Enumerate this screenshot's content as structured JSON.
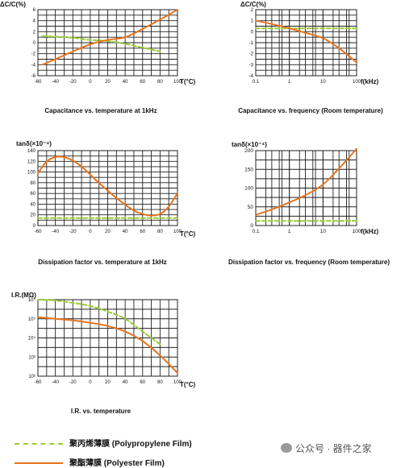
{
  "colors": {
    "polypropylene": "#9ACD32",
    "polyester": "#E8741C",
    "grid": "#222222"
  },
  "chart_data": [
    {
      "id": "cap-temp",
      "type": "line",
      "title": "Capacitance vs. temperature at 1kHz",
      "ylabel": "ΔC/C(%)",
      "xlabel": "T(°C)",
      "xscale": "linear",
      "x_ticks": [
        "-60",
        "-40",
        "-20",
        "0",
        "20",
        "40",
        "60",
        "80",
        "100"
      ],
      "y_ticks": [
        "6",
        "4",
        "2",
        "0",
        "-2",
        "-4",
        "-6"
      ],
      "xlim": [
        -60,
        100
      ],
      "ylim": [
        -6,
        6
      ],
      "grid": true,
      "series": [
        {
          "name": "聚丙烯薄膜 (Polypropylene Film)",
          "style": "dashed",
          "x": [
            -55,
            -40,
            -20,
            0,
            20,
            40,
            60,
            80
          ],
          "y": [
            1.2,
            1.1,
            0.9,
            0.5,
            0.3,
            -0.2,
            -0.9,
            -1.6
          ]
        },
        {
          "name": "聚酯薄膜 (Polyester Film)",
          "style": "solid",
          "x": [
            -55,
            -40,
            -20,
            0,
            20,
            40,
            60,
            80,
            100
          ],
          "y": [
            -4.0,
            -3.0,
            -1.6,
            -0.3,
            0.5,
            1.0,
            2.5,
            4.2,
            6.0
          ]
        }
      ]
    },
    {
      "id": "cap-freq",
      "type": "line",
      "title": "Capacitance vs. frequency (Room temperature)",
      "ylabel": "ΔC/C(%)",
      "xlabel": "f(kHz)",
      "xscale": "log",
      "x_ticks": [
        "0.1",
        "1",
        "10",
        "100"
      ],
      "y_ticks": [
        "2",
        "1",
        "0",
        "-1",
        "-2",
        "-3",
        "-4"
      ],
      "xlim": [
        0.1,
        100
      ],
      "ylim": [
        -4,
        2
      ],
      "grid": true,
      "series": [
        {
          "name": "聚丙烯薄膜 (Polypropylene Film)",
          "style": "dashed",
          "x": [
            0.1,
            1,
            10,
            100
          ],
          "y": [
            0.3,
            0.3,
            0.3,
            0.3
          ]
        },
        {
          "name": "聚酯薄膜 (Polyester Film)",
          "style": "solid",
          "x": [
            0.1,
            0.3,
            1,
            3,
            10,
            30,
            100
          ],
          "y": [
            1.0,
            0.7,
            0.3,
            -0.1,
            -0.6,
            -1.5,
            -2.8
          ]
        }
      ]
    },
    {
      "id": "df-temp",
      "type": "line",
      "title": "Dissipation factor vs. temperature at 1kHz",
      "ylabel": "tanδ(×10⁻⁴)",
      "xlabel": "T(°C)",
      "xscale": "linear",
      "x_ticks": [
        "-60",
        "-40",
        "-20",
        "0",
        "20",
        "40",
        "60",
        "80",
        "100"
      ],
      "y_ticks": [
        "140",
        "120",
        "100",
        "80",
        "60",
        "40",
        "20",
        "0"
      ],
      "xlim": [
        -60,
        100
      ],
      "ylim": [
        -10,
        140
      ],
      "grid": true,
      "series": [
        {
          "name": "聚丙烯薄膜 (Polypropylene Film)",
          "style": "dashed",
          "x": [
            -60,
            -20,
            20,
            60,
            100
          ],
          "y": [
            5,
            5,
            5,
            5,
            5
          ]
        },
        {
          "name": "聚酯薄膜 (Polyester Film)",
          "style": "solid",
          "x": [
            -60,
            -50,
            -40,
            -30,
            -20,
            -10,
            0,
            10,
            20,
            30,
            40,
            50,
            60,
            70,
            80,
            90,
            100
          ],
          "y": [
            95,
            118,
            127,
            127,
            120,
            108,
            92,
            75,
            60,
            45,
            32,
            20,
            13,
            10,
            13,
            28,
            55
          ]
        }
      ]
    },
    {
      "id": "df-freq",
      "type": "line",
      "title": "Dissipation factor vs. frequency (Room temperature)",
      "ylabel": "tanδ(×10⁻⁴)",
      "xlabel": "f(kHz)",
      "xscale": "log",
      "x_ticks": [
        "0.1",
        "1",
        "10",
        "100"
      ],
      "y_ticks": [
        "200",
        "150",
        "100",
        "50",
        "0"
      ],
      "xlim": [
        0.1,
        100
      ],
      "ylim": [
        -10,
        200
      ],
      "grid": true,
      "series": [
        {
          "name": "聚丙烯薄膜 (Polypropylene Film)",
          "style": "dashed",
          "x": [
            0.1,
            1,
            10,
            100
          ],
          "y": [
            3,
            3,
            3,
            3
          ]
        },
        {
          "name": "聚酯薄膜 (Polyester Film)",
          "style": "solid",
          "x": [
            0.1,
            0.3,
            1,
            3,
            10,
            30,
            100
          ],
          "y": [
            20,
            35,
            55,
            75,
            105,
            150,
            205
          ]
        }
      ]
    },
    {
      "id": "ir-temp",
      "type": "line",
      "title": "I.R. vs. temperature",
      "ylabel": "I.R.(MΩ)",
      "xlabel": "T(°C)",
      "xscale": "linear",
      "yscale": "log",
      "x_ticks": [
        "-60",
        "-40",
        "-20",
        "0",
        "20",
        "40",
        "60",
        "80",
        "100"
      ],
      "y_ticks": [
        "10⁶",
        "10⁵",
        "10⁴",
        "10³",
        "10²"
      ],
      "xlim": [
        -60,
        100
      ],
      "ylim": [
        1.5,
        6.3
      ],
      "grid": true,
      "series": [
        {
          "name": "聚丙烯薄膜 (Polypropylene Film)",
          "style": "dashed",
          "x": [
            -60,
            -40,
            -20,
            0,
            20,
            40,
            60,
            80
          ],
          "y": [
            6.3,
            6.25,
            6.1,
            5.9,
            5.55,
            5.1,
            4.3,
            3.5
          ]
        },
        {
          "name": "聚酯薄膜 (Polyester Film)",
          "style": "solid",
          "x": [
            -60,
            -40,
            -20,
            0,
            20,
            40,
            60,
            80,
            100
          ],
          "y": [
            5.2,
            5.1,
            5.0,
            4.85,
            4.65,
            4.3,
            3.7,
            2.8,
            1.7
          ]
        }
      ]
    }
  ],
  "legend": [
    {
      "label": "聚丙烯薄膜  (Polypropylene Film)",
      "style": "dashed",
      "color": "#9ACD32"
    },
    {
      "label": "聚酯薄膜    (Polyester  Film)",
      "style": "solid",
      "color": "#E8741C"
    }
  ],
  "watermark": "公众号 · 器件之家"
}
